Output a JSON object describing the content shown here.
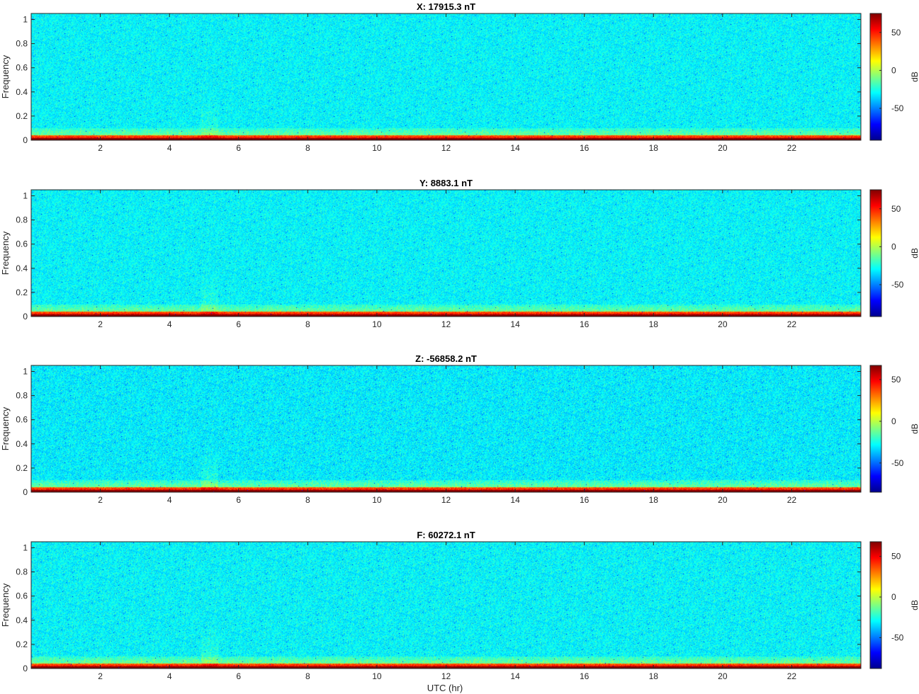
{
  "figure": {
    "xlabel": "UTC (hr)",
    "colormap": "jet",
    "panels": [
      {
        "title": "X: 17915.3 nT",
        "colorbar_label": "dB",
        "clim": [
          -92,
          75
        ],
        "colorbar_ticks": [
          50,
          0,
          -50
        ]
      },
      {
        "title": "Y: 8883.1 nT",
        "colorbar_label": "dB",
        "clim": [
          -92,
          75
        ],
        "colorbar_ticks": [
          50,
          0,
          -50
        ]
      },
      {
        "title": "Z: -56858.2 nT",
        "colorbar_label": "dB",
        "clim": [
          -85,
          67
        ],
        "colorbar_ticks": [
          50,
          0,
          -50
        ]
      },
      {
        "title": "F: 60272.1 nT",
        "colorbar_label": "dB",
        "clim": [
          -88,
          68
        ],
        "colorbar_ticks": [
          50,
          0,
          -50
        ]
      }
    ]
  },
  "chart_data": [
    {
      "type": "heatmap",
      "title": "X: 17915.3 nT",
      "xlabel": "",
      "ylabel": "Frequency",
      "xlim": [
        0,
        24
      ],
      "ylim": [
        0,
        1.05
      ],
      "xticks": [
        2,
        4,
        6,
        8,
        10,
        12,
        14,
        16,
        18,
        20,
        22
      ],
      "yticks": [
        0,
        0.2,
        0.4,
        0.6,
        0.8,
        1
      ],
      "colorbar": {
        "label": "dB",
        "range": [
          -92,
          75
        ],
        "ticks": [
          50,
          0,
          -50
        ]
      },
      "description_values": {
        "background_level_db": -30,
        "low_frequency_band_level_db": 55,
        "near_zero_frequency_level_db": 75
      }
    },
    {
      "type": "heatmap",
      "title": "Y: 8883.1 nT",
      "xlabel": "",
      "ylabel": "Frequency",
      "xlim": [
        0,
        24
      ],
      "ylim": [
        0,
        1.05
      ],
      "xticks": [
        2,
        4,
        6,
        8,
        10,
        12,
        14,
        16,
        18,
        20,
        22
      ],
      "yticks": [
        0,
        0.2,
        0.4,
        0.6,
        0.8,
        1
      ],
      "colorbar": {
        "label": "dB",
        "range": [
          -92,
          75
        ],
        "ticks": [
          50,
          0,
          -50
        ]
      },
      "description_values": {
        "background_level_db": -30,
        "low_frequency_band_level_db": 55,
        "near_zero_frequency_level_db": 75
      }
    },
    {
      "type": "heatmap",
      "title": "Z: -56858.2 nT",
      "xlabel": "",
      "ylabel": "Frequency",
      "xlim": [
        0,
        24
      ],
      "ylim": [
        0,
        1.05
      ],
      "xticks": [
        2,
        4,
        6,
        8,
        10,
        12,
        14,
        16,
        18,
        20,
        22
      ],
      "yticks": [
        0,
        0.2,
        0.4,
        0.6,
        0.8,
        1
      ],
      "colorbar": {
        "label": "dB",
        "range": [
          -85,
          67
        ],
        "ticks": [
          50,
          0,
          -50
        ]
      },
      "description_values": {
        "background_level_db": -30,
        "low_frequency_band_level_db": 50,
        "near_zero_frequency_level_db": 67
      }
    },
    {
      "type": "heatmap",
      "title": "F: 60272.1 nT",
      "xlabel": "UTC (hr)",
      "ylabel": "Frequency",
      "xlim": [
        0,
        24
      ],
      "ylim": [
        0,
        1.05
      ],
      "xticks": [
        2,
        4,
        6,
        8,
        10,
        12,
        14,
        16,
        18,
        20,
        22
      ],
      "yticks": [
        0,
        0.2,
        0.4,
        0.6,
        0.8,
        1
      ],
      "colorbar": {
        "label": "dB",
        "range": [
          -88,
          68
        ],
        "ticks": [
          50,
          0,
          -50
        ]
      },
      "description_values": {
        "background_level_db": -30,
        "low_frequency_band_level_db": 50,
        "near_zero_frequency_level_db": 68
      }
    }
  ]
}
